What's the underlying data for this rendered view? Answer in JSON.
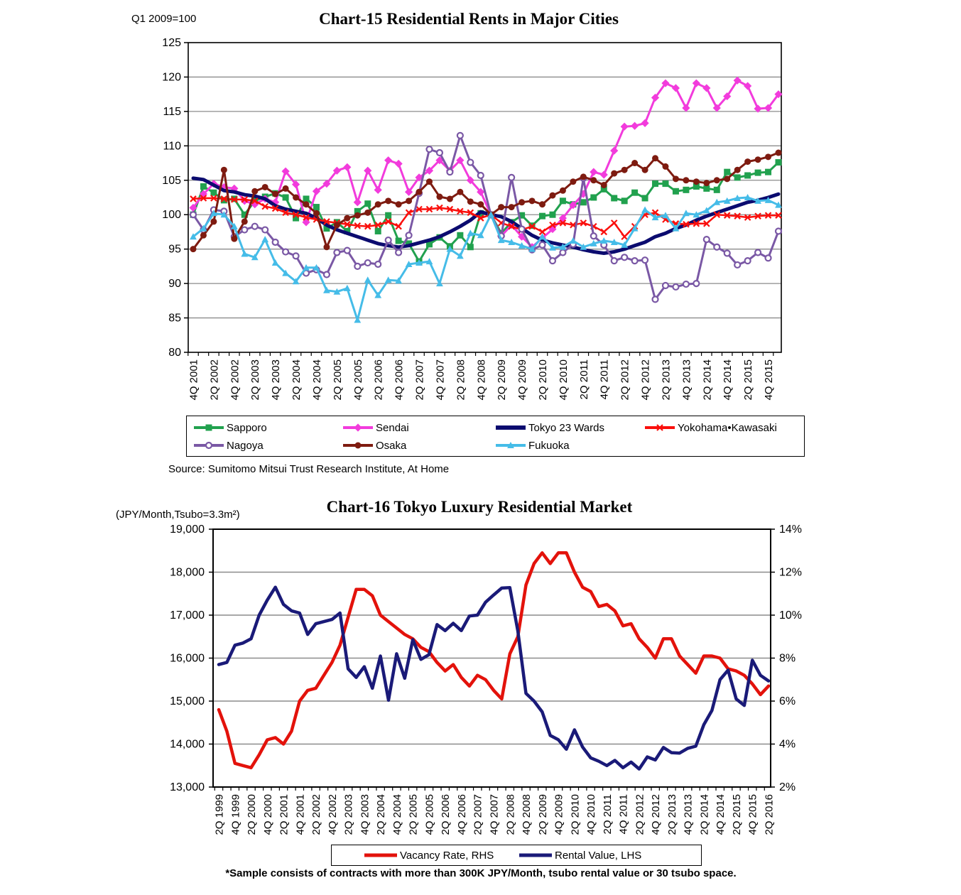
{
  "chart_data": [
    {
      "id": "chart15",
      "type": "line",
      "title": "Chart-15 Residential Rents in Major Cities",
      "index_note": "Q1 2009=100",
      "source": "Source: Sumitomo Mitsui Trust Research Institute, At Home",
      "ylim": [
        80,
        125
      ],
      "y_step": 5,
      "grid": true,
      "legend_position": "bottom-box",
      "points_per_series": 58,
      "x_start_quarter": "4Q 2001",
      "x_end_quarter": "1Q 2016",
      "x_tick_labels": [
        "4Q 2001",
        "2Q 2002",
        "4Q 2002",
        "2Q 2003",
        "4Q 2003",
        "2Q 2004",
        "4Q 2004",
        "2Q 2005",
        "4Q 2005",
        "2Q 2006",
        "4Q 2006",
        "2Q 2007",
        "4Q 2007",
        "2Q 2008",
        "4Q 2008",
        "2Q 2009",
        "4Q 2009",
        "2Q 2010",
        "4Q 2010",
        "2Q 2011",
        "4Q 2011",
        "2Q 2012",
        "4Q 2012",
        "2Q 2013",
        "4Q 2013",
        "2Q 2014",
        "4Q 2014",
        "2Q 2015",
        "4Q 2015"
      ],
      "legend_rows": [
        [
          "Sapporo",
          "Sendai",
          "Tokyo 23 Wards",
          "Yokohama•Kawasaki"
        ],
        [
          "Nagoya",
          "Osaka",
          "Fukuoka"
        ]
      ],
      "series": [
        {
          "name": "Sapporo",
          "color": "#21A14E",
          "marker": "square",
          "width": 3,
          "values": [
            100.0,
            104.1,
            103.2,
            102.1,
            102.3,
            100.0,
            102.0,
            102.6,
            103.1,
            102.5,
            99.5,
            102.3,
            101.1,
            98.0,
            98.9,
            97.6,
            100.5,
            101.6,
            97.6,
            99.9,
            96.2,
            95.8,
            93.2,
            95.7,
            96.7,
            95.4,
            97.0,
            95.3,
            100.2,
            100.0,
            97.3,
            98.9,
            99.9,
            98.4,
            99.8,
            100.0,
            102.0,
            101.5,
            101.8,
            102.5,
            103.7,
            102.4,
            102.0,
            103.2,
            102.4,
            104.5,
            104.5,
            103.4,
            103.6,
            104.1,
            103.8,
            103.6,
            106.2,
            105.4,
            105.7,
            106.1,
            106.2,
            107.6
          ]
        },
        {
          "name": "Sendai",
          "color": "#F23BDC",
          "marker": "diamond",
          "width": 3,
          "values": [
            101.0,
            103.0,
            104.5,
            104.0,
            103.8,
            102.0,
            101.5,
            102.3,
            101.8,
            106.3,
            104.4,
            98.9,
            103.4,
            104.5,
            106.4,
            106.9,
            101.8,
            106.4,
            103.6,
            107.9,
            107.4,
            103.3,
            105.4,
            106.4,
            107.9,
            106.4,
            107.9,
            105.0,
            103.3,
            100.0,
            96.9,
            98.5,
            96.8,
            95.3,
            96.6,
            97.9,
            99.5,
            101.4,
            103.0,
            106.2,
            105.8,
            109.3,
            112.8,
            112.9,
            113.3,
            117.0,
            119.1,
            118.4,
            115.5,
            119.1,
            118.4,
            115.5,
            117.2,
            119.5,
            118.7,
            115.4,
            115.5,
            117.5
          ]
        },
        {
          "name": "Tokyo 23 Wards",
          "color": "#0B0B6F",
          "marker": "none",
          "width": 5,
          "values": [
            105.3,
            105.1,
            104.3,
            103.5,
            103.3,
            102.9,
            102.7,
            102.3,
            101.3,
            100.8,
            100.5,
            100.2,
            99.5,
            98.5,
            97.8,
            97.3,
            96.8,
            96.3,
            95.8,
            95.5,
            95.3,
            95.5,
            95.9,
            96.3,
            96.8,
            97.5,
            98.3,
            99.2,
            100.4,
            100.0,
            99.7,
            99.0,
            98.0,
            97.0,
            96.3,
            95.9,
            95.6,
            95.3,
            94.9,
            94.6,
            94.4,
            94.6,
            95.0,
            95.5,
            96.0,
            96.8,
            97.3,
            98.0,
            98.5,
            99.2,
            99.8,
            100.3,
            100.8,
            101.3,
            101.8,
            102.1,
            102.5,
            103.0
          ]
        },
        {
          "name": "Yokohama•Kawasaki",
          "color": "#FA0F0C",
          "marker": "x",
          "width": 2.5,
          "values": [
            102.3,
            102.4,
            102.4,
            102.3,
            102.2,
            102.2,
            102.0,
            101.2,
            100.9,
            100.3,
            100.0,
            99.6,
            99.3,
            99.0,
            98.8,
            98.6,
            98.4,
            98.3,
            98.5,
            99.0,
            98.3,
            100.3,
            100.8,
            100.8,
            101.0,
            100.8,
            100.5,
            100.3,
            99.5,
            100.0,
            98.8,
            98.3,
            97.8,
            98.3,
            97.5,
            98.5,
            98.8,
            98.5,
            98.8,
            98.3,
            97.5,
            98.8,
            96.8,
            98.3,
            100.0,
            100.3,
            99.3,
            98.7,
            98.6,
            98.7,
            98.7,
            100.0,
            99.9,
            99.8,
            99.6,
            99.8,
            99.9,
            99.9
          ]
        },
        {
          "name": "Nagoya",
          "color": "#7A58A5",
          "marker": "circle-open",
          "width": 3,
          "values": [
            100.0,
            97.8,
            100.7,
            100.5,
            96.8,
            97.8,
            98.3,
            97.8,
            96.0,
            94.6,
            94.0,
            91.5,
            92.0,
            91.3,
            94.5,
            94.8,
            92.5,
            93.0,
            92.8,
            96.3,
            94.5,
            97.0,
            103.1,
            109.5,
            109.0,
            106.2,
            111.5,
            107.6,
            105.7,
            100.0,
            96.9,
            105.4,
            97.9,
            94.9,
            95.6,
            93.3,
            94.5,
            95.7,
            105.3,
            96.9,
            95.6,
            93.3,
            93.8,
            93.3,
            93.4,
            87.7,
            89.7,
            89.5,
            89.9,
            90.0,
            96.4,
            95.3,
            94.4,
            92.7,
            93.3,
            94.5,
            93.7,
            97.6
          ]
        },
        {
          "name": "Osaka",
          "color": "#7E1B10",
          "marker": "circle",
          "width": 3,
          "values": [
            95.0,
            97.0,
            99.0,
            106.5,
            96.5,
            99.0,
            103.4,
            104.0,
            103.0,
            103.8,
            102.5,
            101.5,
            100.2,
            95.3,
            98.5,
            99.5,
            99.9,
            100.3,
            101.5,
            102.0,
            101.5,
            102.0,
            103.3,
            104.8,
            102.6,
            102.3,
            103.3,
            101.9,
            101.5,
            100.0,
            101.1,
            101.1,
            101.8,
            102.0,
            101.5,
            102.8,
            103.5,
            104.8,
            105.5,
            105.0,
            104.3,
            106.0,
            106.5,
            107.5,
            106.5,
            108.2,
            107.0,
            105.2,
            105.0,
            104.8,
            104.6,
            105.0,
            105.2,
            106.5,
            107.7,
            108.0,
            108.4,
            109.0
          ]
        },
        {
          "name": "Fukuoka",
          "color": "#45BCE8",
          "marker": "triangle",
          "width": 3,
          "values": [
            96.8,
            98.0,
            100.2,
            100.0,
            98.3,
            94.3,
            93.8,
            96.4,
            93.0,
            91.5,
            90.3,
            92.3,
            92.3,
            89.0,
            88.8,
            89.3,
            84.7,
            90.5,
            88.3,
            90.5,
            90.4,
            92.8,
            93.0,
            93.2,
            90.0,
            95.0,
            94.0,
            97.3,
            97.0,
            100.0,
            96.3,
            96.0,
            95.5,
            95.0,
            96.8,
            95.2,
            95.3,
            96.2,
            95.3,
            95.8,
            96.2,
            96.0,
            95.6,
            98.0,
            100.7,
            99.6,
            99.9,
            98.0,
            100.2,
            100.0,
            100.6,
            101.8,
            102.0,
            102.4,
            102.5,
            102.0,
            102.1,
            101.4
          ]
        }
      ]
    },
    {
      "id": "chart16",
      "type": "line",
      "title": "Chart-16 Tokyo Luxury Residential Market",
      "unit_note": "(JPY/Month,Tsubo=3.3m²)",
      "footnote": "*Sample consists of contracts with more than 300K JPY/Month, tsubo rental value or 30 tsubo space.",
      "grid": true,
      "legend_position": "bottom-box",
      "points_per_series": 69,
      "x_start_quarter": "2Q 1999",
      "x_end_quarter": "2Q 2016",
      "x_tick_labels": [
        "2Q 1999",
        "4Q 1999",
        "2Q 2000",
        "4Q 2000",
        "2Q 2001",
        "4Q 2001",
        "2Q 2002",
        "4Q 2002",
        "2Q 2003",
        "4Q 2003",
        "2Q 2004",
        "4Q 2004",
        "2Q 2005",
        "4Q 2005",
        "2Q 2006",
        "4Q 2006",
        "2Q 2007",
        "4Q 2007",
        "2Q 2008",
        "4Q 2008",
        "2Q 2009",
        "4Q 2009",
        "2Q 2010",
        "4Q 2010",
        "2Q 2011",
        "4Q 2011",
        "2Q 2012",
        "4Q 2012",
        "2Q 2013",
        "4Q 2013",
        "2Q 2014",
        "4Q 2014",
        "2Q 2015",
        "4Q 2015",
        "2Q 2016"
      ],
      "y_left": {
        "min": 13000,
        "max": 19000,
        "step": 1000,
        "format": "thousands",
        "label": "JPY/Month per tsubo"
      },
      "y_right": {
        "min": 2,
        "max": 14,
        "step": 2,
        "format": "percent",
        "label": "Vacancy rate"
      },
      "series": [
        {
          "name": "Vacancy Rate, RHS",
          "color": "#E3120B",
          "axis": "right",
          "marker": "none",
          "width": 4.5,
          "values": [
            5.6,
            4.6,
            3.1,
            3.0,
            2.9,
            3.5,
            4.2,
            4.3,
            4.0,
            4.6,
            6.0,
            6.5,
            6.6,
            7.2,
            7.8,
            8.6,
            9.9,
            11.2,
            11.2,
            10.9,
            10.0,
            9.7,
            9.4,
            9.1,
            8.9,
            8.5,
            8.3,
            7.8,
            7.4,
            7.7,
            7.1,
            6.7,
            7.2,
            7.0,
            6.5,
            6.1,
            8.2,
            9.0,
            11.4,
            12.4,
            12.9,
            12.4,
            12.9,
            12.9,
            12.0,
            11.3,
            11.1,
            10.4,
            10.5,
            10.2,
            9.5,
            9.6,
            8.9,
            8.5,
            8.0,
            8.9,
            8.9,
            8.1,
            7.7,
            7.3,
            8.1,
            8.1,
            8.0,
            7.5,
            7.4,
            7.2,
            6.8,
            6.3,
            6.7
          ]
        },
        {
          "name": "Rental Value, LHS",
          "color": "#1A1A78",
          "axis": "left",
          "marker": "none",
          "width": 4.5,
          "values": [
            15850,
            15900,
            16300,
            16350,
            16450,
            17000,
            17350,
            17650,
            17250,
            17100,
            17050,
            16550,
            16800,
            16850,
            16900,
            17050,
            15750,
            15550,
            15800,
            15300,
            16050,
            15020,
            16100,
            15530,
            16430,
            15970,
            16080,
            16780,
            16640,
            16810,
            16640,
            16980,
            17000,
            17300,
            17470,
            17630,
            17640,
            16630,
            15180,
            15000,
            14750,
            14200,
            14100,
            13880,
            14330,
            13930,
            13680,
            13600,
            13500,
            13620,
            13450,
            13580,
            13420,
            13700,
            13630,
            13920,
            13800,
            13790,
            13900,
            13950,
            14450,
            14780,
            15500,
            15720,
            15050,
            14900,
            15950,
            15600,
            15470
          ]
        }
      ]
    }
  ]
}
